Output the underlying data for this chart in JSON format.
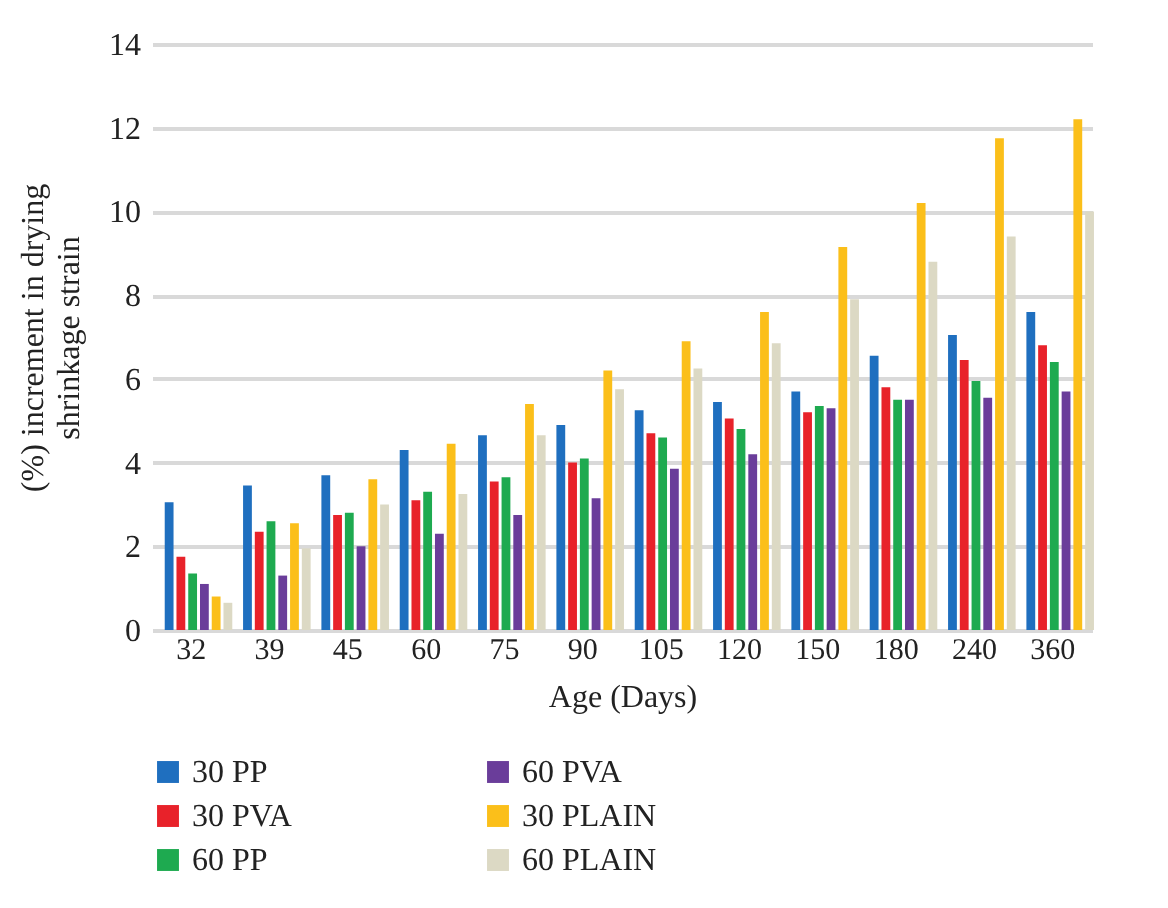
{
  "chart_data": {
    "type": "bar",
    "xlabel": "Age (Days)",
    "ylabel": "(%) increment in drying shrinkage strain",
    "categories": [
      "32",
      "39",
      "45",
      "60",
      "75",
      "90",
      "105",
      "120",
      "150",
      "180",
      "240",
      "360"
    ],
    "series": [
      {
        "name": "30 PP",
        "color": "#1f6fbf",
        "values": [
          3.05,
          3.45,
          3.7,
          4.3,
          4.65,
          4.9,
          5.25,
          5.45,
          5.7,
          6.55,
          7.05,
          7.6
        ]
      },
      {
        "name": "30 PVA",
        "color": "#e8222a",
        "values": [
          1.75,
          2.35,
          2.75,
          3.1,
          3.55,
          4.0,
          4.7,
          5.05,
          5.2,
          5.8,
          6.45,
          6.8
        ]
      },
      {
        "name": "60 PP",
        "color": "#1eaa50",
        "values": [
          1.35,
          2.6,
          2.8,
          3.3,
          3.65,
          4.1,
          4.6,
          4.8,
          5.35,
          5.5,
          5.95,
          6.4
        ]
      },
      {
        "name": "60 PVA",
        "color": "#6a3d9a",
        "values": [
          1.1,
          1.3,
          2.0,
          2.3,
          2.75,
          3.15,
          3.85,
          4.2,
          5.3,
          5.5,
          5.55,
          5.7
        ]
      },
      {
        "name": "30 PLAIN",
        "color": "#fbbf1a",
        "values": [
          0.8,
          2.55,
          3.6,
          4.45,
          5.4,
          6.2,
          6.9,
          7.6,
          9.15,
          10.2,
          11.75,
          12.2
        ]
      },
      {
        "name": "60 PLAIN",
        "color": "#dcd9c4",
        "values": [
          0.65,
          1.95,
          3.0,
          3.25,
          4.65,
          5.75,
          6.25,
          6.85,
          7.9,
          8.8,
          9.4,
          10.0
        ]
      }
    ],
    "ylim": [
      0,
      14
    ],
    "yticks": [
      0,
      2,
      4,
      6,
      8,
      10,
      12,
      14
    ],
    "grid": "y",
    "legend": "bottom"
  }
}
